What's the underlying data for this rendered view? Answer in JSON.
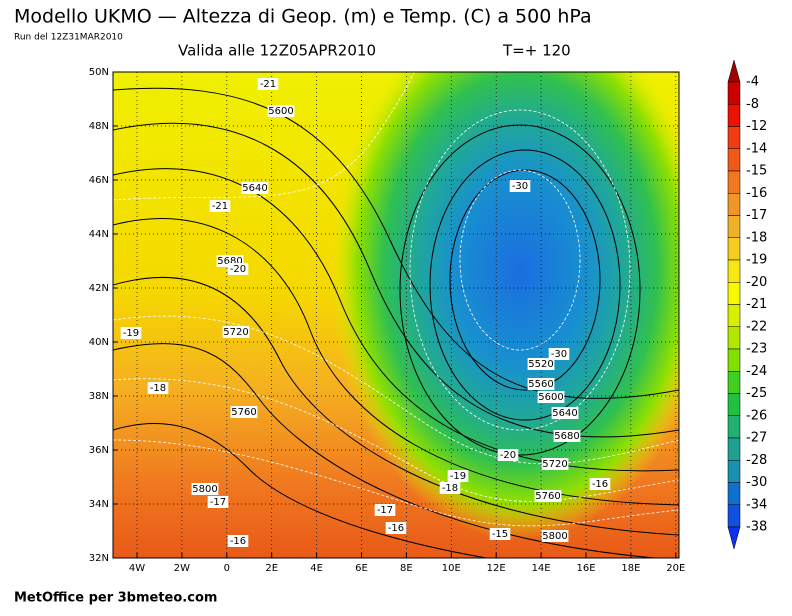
{
  "header": {
    "title": "Modello UKMO — Altezza di Geop. (m) e Temp. (C) a 500 hPa",
    "run": "Run del 12Z31MAR2010",
    "valid": "Valida alle 12Z05APR2010",
    "forecast_step": "T=+ 120"
  },
  "map": {
    "lon_labels": [
      "4W",
      "2W",
      "0",
      "2E",
      "4E",
      "6E",
      "8E",
      "10E",
      "12E",
      "14E",
      "16E",
      "18E",
      "20E"
    ],
    "lat_labels": [
      "50N",
      "48N",
      "46N",
      "44N",
      "42N",
      "40N",
      "38N",
      "36N",
      "34N",
      "32N"
    ],
    "contour_labels": [
      "-21",
      "5600",
      "5640",
      "-21",
      "5680",
      "-20",
      "-19",
      "5720",
      "-18",
      "5760",
      "5800",
      "-17",
      "-16",
      "-17",
      "-16",
      "-19",
      "-18",
      "-20",
      "-15",
      "5800",
      "5760",
      "5720",
      "5680",
      "5640",
      "5600",
      "5560",
      "5520",
      "-30",
      "-30",
      "-16"
    ]
  },
  "colorbar": {
    "labels": [
      -4,
      -8,
      -12,
      -14,
      -15,
      -16,
      -17,
      -18,
      -19,
      -20,
      -21,
      -22,
      -23,
      -24,
      -25,
      -26,
      -27,
      -28,
      -30,
      -34,
      -38
    ]
  },
  "footer": "MetOffice per 3bmeteo.com"
}
